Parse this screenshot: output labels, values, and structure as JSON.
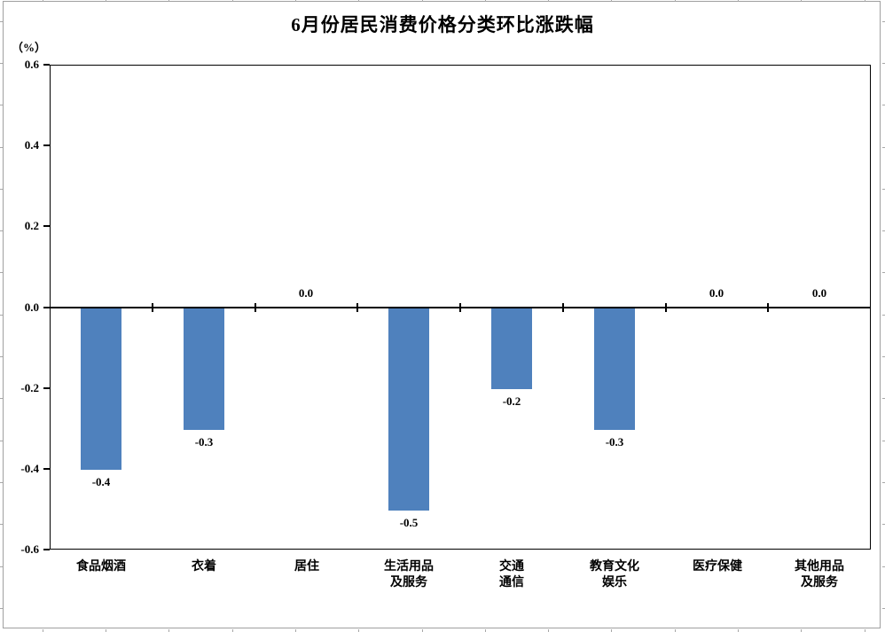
{
  "page": {
    "background_color": "#ffffff",
    "frame_border_color": "#a0a0a0"
  },
  "chart_data": {
    "type": "bar",
    "title": "6月份居民消费价格分类环比涨跌幅",
    "ylabel": "（%）",
    "xlabel": "",
    "categories": [
      "食品烟酒",
      "衣着",
      "居住",
      "生活用品及服务",
      "交通通信",
      "教育文化娱乐",
      "医疗保健",
      "其他用品及服务"
    ],
    "category_label_lines": [
      [
        "食品烟酒"
      ],
      [
        "衣着"
      ],
      [
        "居住"
      ],
      [
        "生活用品",
        "及服务"
      ],
      [
        "交通",
        "通信"
      ],
      [
        "教育文化",
        "娱乐"
      ],
      [
        "医疗保健"
      ],
      [
        "其他用品",
        "及服务"
      ]
    ],
    "values": [
      -0.4,
      -0.3,
      0.0,
      -0.5,
      -0.2,
      -0.3,
      0.0,
      0.0
    ],
    "data_labels": [
      "-0.4",
      "-0.3",
      "0.0",
      "-0.5",
      "-0.2",
      "-0.3",
      "0.0",
      "0.0"
    ],
    "y_tick_labels": [
      "0.6",
      "0.4",
      "0.2",
      "0.0",
      "-0.2",
      "-0.4",
      "-0.6"
    ],
    "ylim": [
      -0.6,
      0.6
    ],
    "y_tick_step": 0.2,
    "bar_color": "#4F81BD",
    "axis_color": "#000000",
    "text_color": "#000000",
    "grid": false,
    "legend": false
  }
}
